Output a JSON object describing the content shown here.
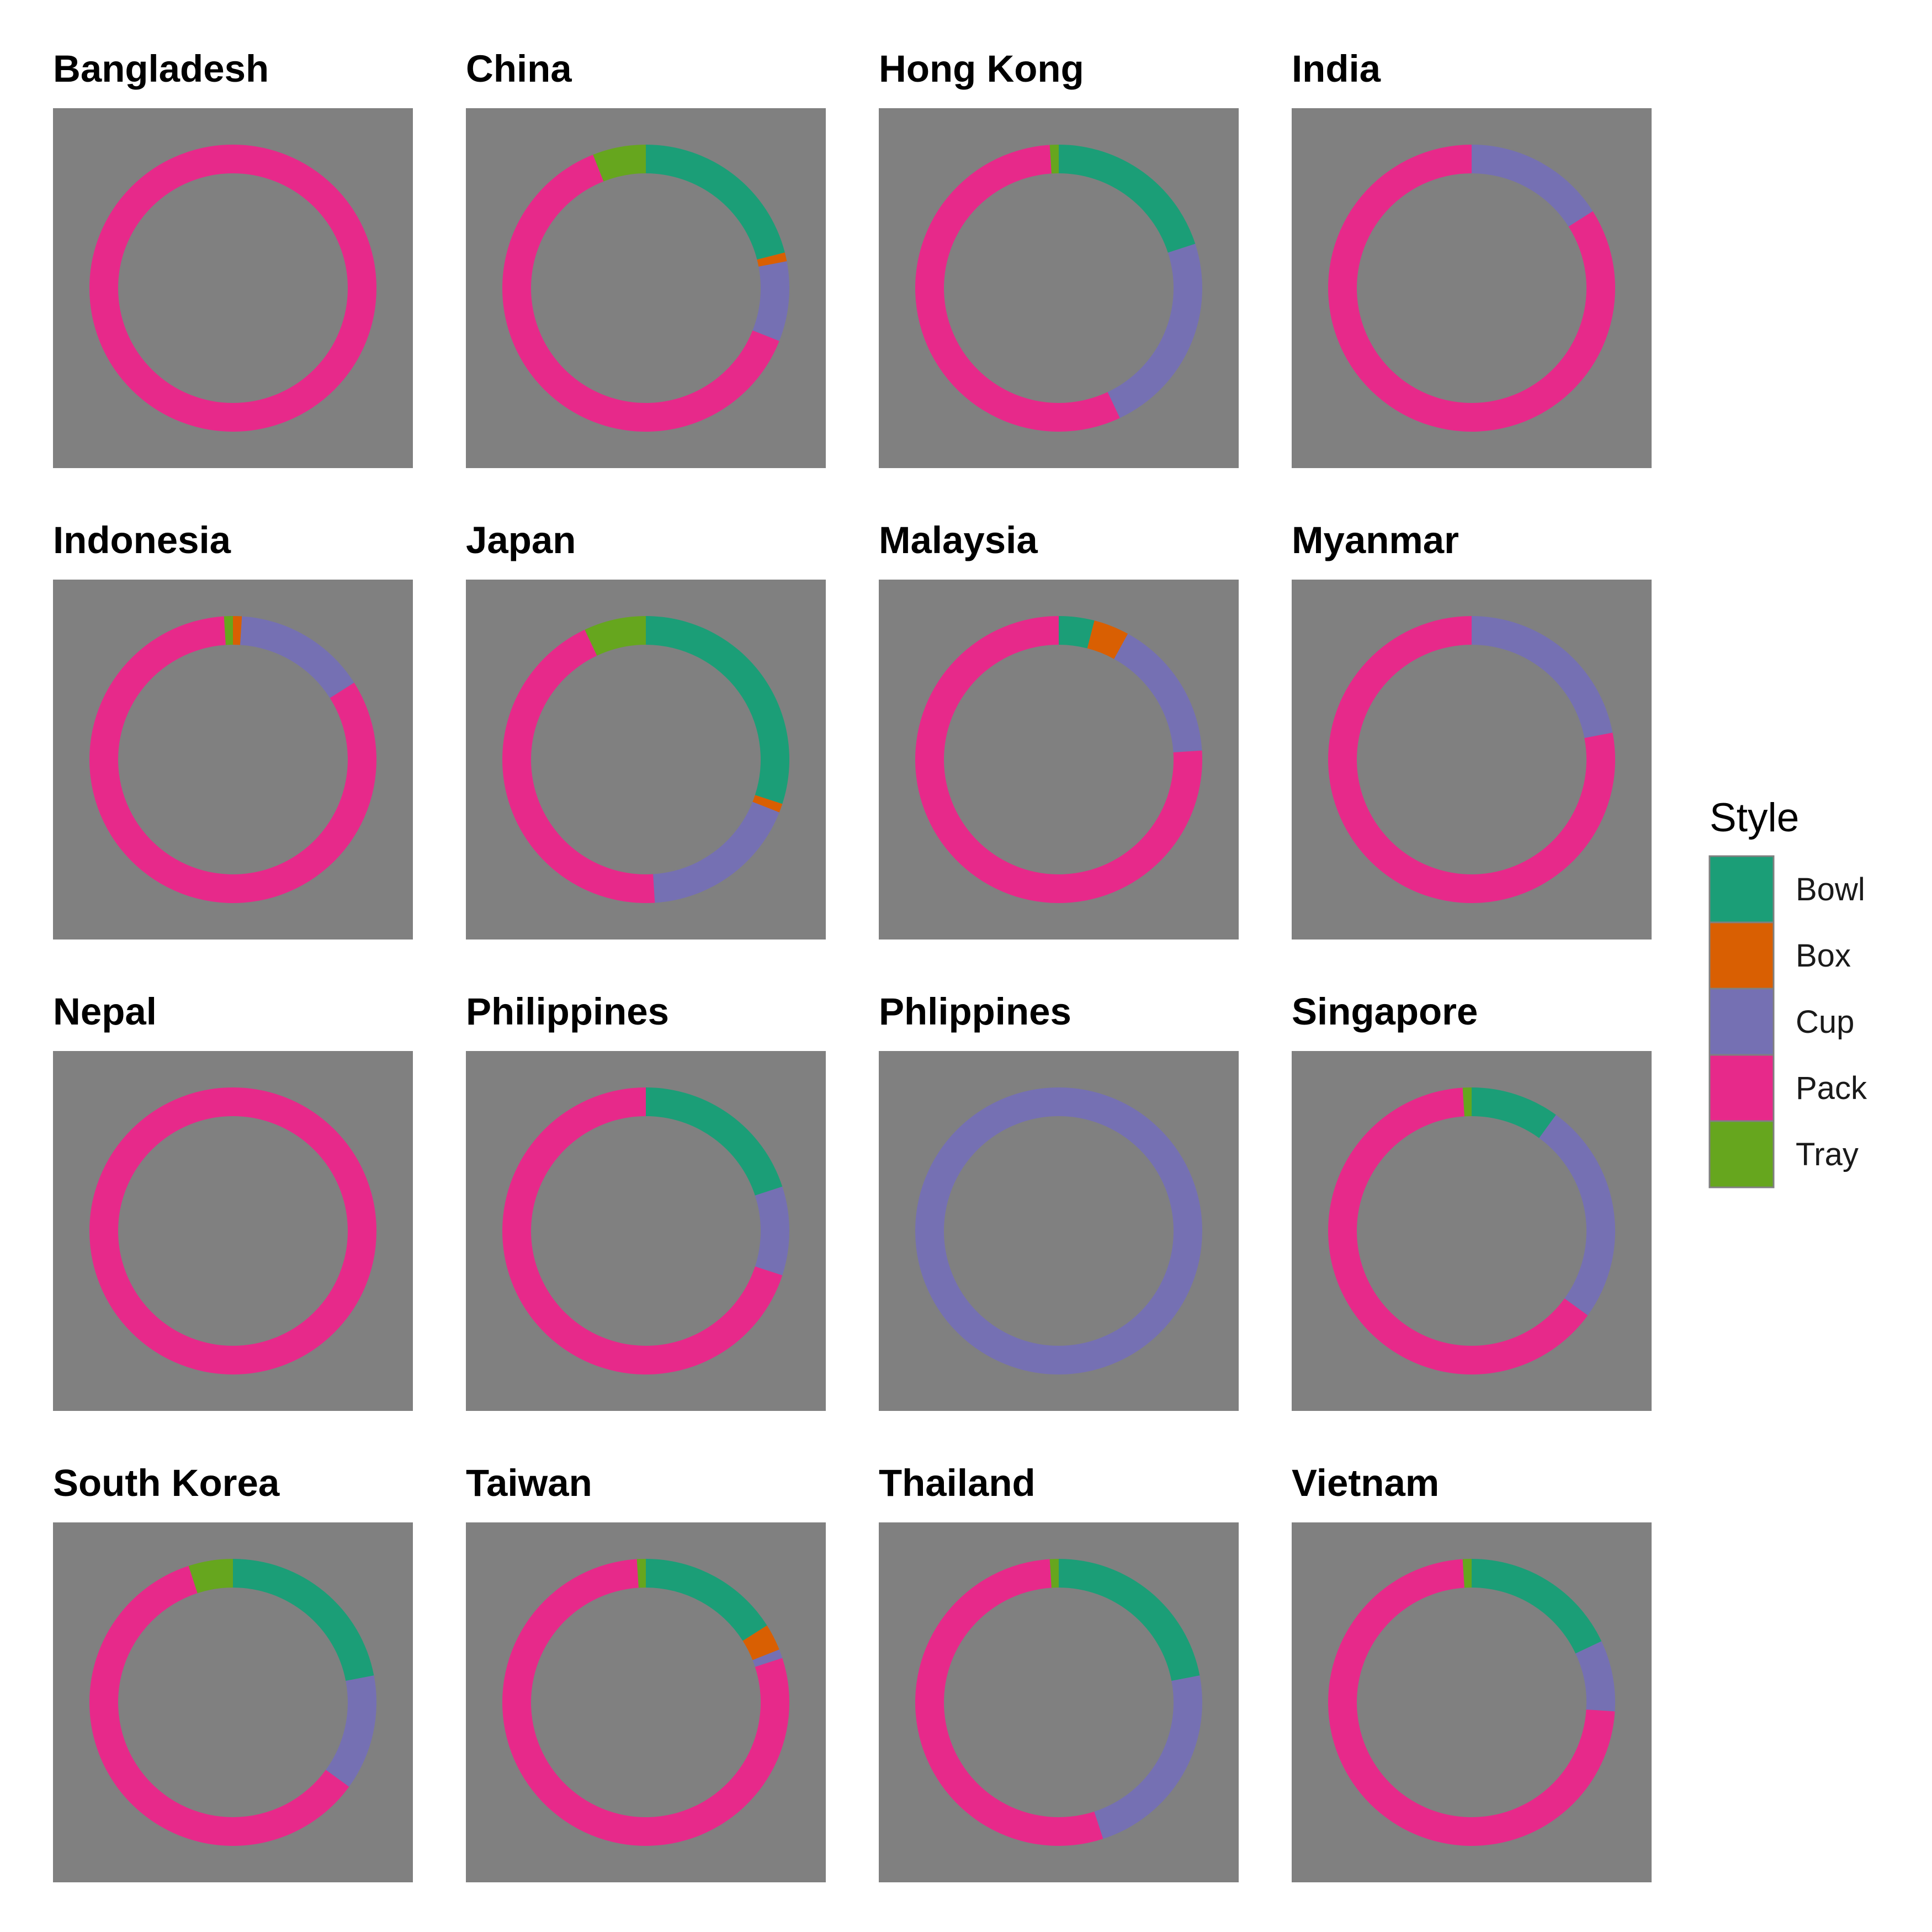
{
  "chart_data": {
    "type": "donut",
    "layout": "small-multiples",
    "legend": {
      "title": "Style",
      "placement": "right",
      "entries": [
        {
          "label": "Bowl",
          "color": "#1b9e77"
        },
        {
          "label": "Box",
          "color": "#d95f02"
        },
        {
          "label": "Cup",
          "color": "#7570b3"
        },
        {
          "label": "Pack",
          "color": "#e7298a"
        },
        {
          "label": "Tray",
          "color": "#66a61e"
        }
      ]
    },
    "panel_background": "#808080",
    "series_order": [
      "Bowl",
      "Box",
      "Cup",
      "Pack",
      "Tray"
    ],
    "panels": [
      {
        "title": "Bangladesh",
        "values": {
          "Bowl": 0,
          "Box": 0,
          "Cup": 0,
          "Pack": 1.0,
          "Tray": 0
        }
      },
      {
        "title": "China",
        "values": {
          "Bowl": 0.21,
          "Box": 0.01,
          "Cup": 0.09,
          "Pack": 0.63,
          "Tray": 0.06
        }
      },
      {
        "title": "Hong Kong",
        "values": {
          "Bowl": 0.2,
          "Box": 0,
          "Cup": 0.23,
          "Pack": 0.56,
          "Tray": 0.01
        }
      },
      {
        "title": "India",
        "values": {
          "Bowl": 0,
          "Box": 0,
          "Cup": 0.16,
          "Pack": 0.84,
          "Tray": 0
        }
      },
      {
        "title": "Indonesia",
        "values": {
          "Bowl": 0,
          "Box": 0.01,
          "Cup": 0.15,
          "Pack": 0.83,
          "Tray": 0.01
        }
      },
      {
        "title": "Japan",
        "values": {
          "Bowl": 0.3,
          "Box": 0.01,
          "Cup": 0.18,
          "Pack": 0.44,
          "Tray": 0.07
        }
      },
      {
        "title": "Malaysia",
        "values": {
          "Bowl": 0.04,
          "Box": 0.04,
          "Cup": 0.16,
          "Pack": 0.76,
          "Tray": 0
        }
      },
      {
        "title": "Myanmar",
        "values": {
          "Bowl": 0,
          "Box": 0,
          "Cup": 0.22,
          "Pack": 0.78,
          "Tray": 0
        }
      },
      {
        "title": "Nepal",
        "values": {
          "Bowl": 0,
          "Box": 0,
          "Cup": 0,
          "Pack": 1.0,
          "Tray": 0
        }
      },
      {
        "title": "Philippines",
        "values": {
          "Bowl": 0.2,
          "Box": 0,
          "Cup": 0.1,
          "Pack": 0.7,
          "Tray": 0
        }
      },
      {
        "title": "Phlippines",
        "values": {
          "Bowl": 0,
          "Box": 0,
          "Cup": 1.0,
          "Pack": 0,
          "Tray": 0
        }
      },
      {
        "title": "Singapore",
        "values": {
          "Bowl": 0.1,
          "Box": 0,
          "Cup": 0.25,
          "Pack": 0.64,
          "Tray": 0.01
        }
      },
      {
        "title": "South Korea",
        "values": {
          "Bowl": 0.22,
          "Box": 0,
          "Cup": 0.13,
          "Pack": 0.6,
          "Tray": 0.05
        }
      },
      {
        "title": "Taiwan",
        "values": {
          "Bowl": 0.16,
          "Box": 0.03,
          "Cup": 0.01,
          "Pack": 0.79,
          "Tray": 0.01
        }
      },
      {
        "title": "Thailand",
        "values": {
          "Bowl": 0.22,
          "Box": 0,
          "Cup": 0.23,
          "Pack": 0.54,
          "Tray": 0.01
        }
      },
      {
        "title": "Vietnam",
        "values": {
          "Bowl": 0.18,
          "Box": 0,
          "Cup": 0.08,
          "Pack": 0.73,
          "Tray": 0.01
        }
      }
    ]
  }
}
